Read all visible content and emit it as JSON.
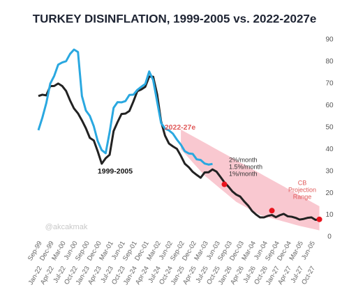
{
  "chart_data": {
    "type": "line",
    "title": "TURKEY DISINFLATION, 1999-2005 vs. 2022-2027e",
    "categories_top": [
      "Sep-99",
      null,
      null,
      "Dec-99",
      null,
      null,
      "Mar-00",
      null,
      null,
      "Jun-00",
      null,
      null,
      "Sep-00",
      null,
      null,
      "Dec-00",
      null,
      null,
      "Mar-01",
      null,
      null,
      "Jun-01",
      null,
      null,
      "Sep-01",
      null,
      null,
      "Dec-01",
      null,
      null,
      "Mar-02",
      null,
      null,
      "Jun-02",
      null,
      null,
      "Sep-02",
      null,
      null,
      "Dec-02",
      null,
      null,
      "Mar-03",
      null,
      null,
      "Jun-03",
      null,
      null,
      "Sep-03",
      null,
      null,
      "Dec-03",
      null,
      null,
      "Mar-04",
      null,
      null,
      "Jun-04",
      null,
      null,
      "Sep-04",
      null,
      null,
      "Dec-04",
      null,
      null,
      "Mar-05",
      null,
      null,
      "Jun-05",
      null,
      null
    ],
    "categories": [
      "Jan-22",
      null,
      null,
      "Apr-22",
      null,
      null,
      "Jul-22",
      null,
      null,
      "Oct-22",
      null,
      null,
      "Jan-23",
      null,
      null,
      "Apr-23",
      null,
      null,
      "Jul-23",
      null,
      null,
      "Oct-23",
      null,
      null,
      "Jan-24",
      null,
      null,
      "Apr-24",
      null,
      null,
      "Jul-24",
      null,
      null,
      "Oct-24",
      null,
      null,
      "Jan-25",
      null,
      null,
      "Apr-25",
      null,
      null,
      "Jul-25",
      null,
      null,
      "Oct-25",
      null,
      null,
      "Jan-26",
      null,
      null,
      "Apr-26",
      null,
      null,
      "Jul-26",
      null,
      null,
      "Oct-26",
      null,
      null,
      "Jan-27",
      null,
      null,
      "Apr-27",
      null,
      null,
      "Jul-27",
      null,
      null,
      "Oct-27",
      null,
      null
    ],
    "series": [
      {
        "name": "2022-27e",
        "color": "#2aa8e0",
        "values": [
          48.7,
          54.4,
          61.1,
          70.0,
          73.5,
          78.6,
          79.6,
          80.2,
          83.5,
          85.5,
          84.4,
          64.3,
          57.7,
          55.2,
          50.5,
          43.7,
          39.6,
          38.2,
          47.8,
          58.9,
          61.5,
          61.4,
          62.0,
          64.8,
          64.9,
          67.1,
          68.5,
          69.8,
          75.5,
          71.6,
          61.8,
          52.0,
          49.4,
          48.6,
          47.1,
          44.4,
          42.1,
          39.1,
          38.1,
          37.9,
          35.4,
          35.1,
          33.5,
          33.0,
          33.3,
          null,
          null,
          null,
          null,
          null,
          null,
          null,
          null,
          null,
          null,
          null,
          null,
          null,
          null,
          null,
          null,
          null,
          null,
          null,
          null,
          null,
          null,
          null,
          null,
          null,
          null,
          null
        ]
      },
      {
        "name": "1999-2005",
        "color": "#222222",
        "values": [
          64.3,
          64.9,
          64.6,
          68.8,
          68.9,
          70.0,
          68.9,
          66.6,
          62.3,
          58.6,
          56.4,
          53.2,
          49.6,
          45.2,
          44.0,
          39.0,
          33.4,
          35.9,
          37.5,
          48.3,
          52.4,
          56.1,
          56.3,
          57.5,
          61.8,
          66.5,
          67.3,
          68.5,
          73.2,
          73.1,
          65.1,
          52.7,
          46.2,
          42.6,
          41.3,
          40.2,
          37.0,
          33.4,
          31.8,
          29.7,
          28.3,
          27.0,
          29.4,
          29.5,
          30.8,
          29.8,
          27.4,
          24.9,
          23.0,
          20.8,
          19.3,
          18.4,
          16.2,
          14.3,
          11.8,
          10.2,
          8.9,
          8.9,
          9.6,
          10.0,
          9.0,
          9.9,
          10.5,
          9.4,
          9.2,
          8.7,
          7.9,
          8.2,
          8.7,
          8.9,
          7.8,
          7.9
        ]
      }
    ],
    "band": {
      "color": "#f9c8d0",
      "upper": [
        null,
        null,
        null,
        null,
        null,
        null,
        null,
        null,
        null,
        null,
        null,
        null,
        null,
        null,
        null,
        null,
        null,
        null,
        null,
        null,
        null,
        null,
        null,
        null,
        null,
        null,
        null,
        null,
        null,
        null,
        null,
        null,
        null,
        null,
        null,
        null,
        49,
        48,
        47,
        46,
        45,
        44,
        43,
        42,
        41,
        40,
        39,
        38,
        37,
        36,
        35,
        34,
        33,
        32,
        31,
        30,
        29,
        28,
        27,
        26,
        25,
        24,
        23,
        22,
        21,
        20,
        19,
        18,
        17,
        16,
        15,
        14
      ],
      "lower": [
        null,
        null,
        null,
        null,
        null,
        null,
        null,
        null,
        null,
        null,
        null,
        null,
        null,
        null,
        null,
        null,
        null,
        null,
        null,
        null,
        null,
        null,
        null,
        null,
        null,
        null,
        null,
        null,
        null,
        null,
        null,
        null,
        null,
        null,
        null,
        null,
        40,
        38,
        36,
        34,
        32,
        30,
        28,
        26.5,
        25,
        23.5,
        22,
        20.5,
        19,
        17.5,
        16,
        15,
        14,
        13,
        12,
        11,
        10,
        9.5,
        9,
        8.5,
        8,
        7.5,
        7,
        6.5,
        6,
        5.5,
        5,
        4.6,
        4.2,
        3.8,
        3.4,
        3
      ]
    },
    "cb_points": {
      "color": "#e8141e",
      "values": [
        null,
        null,
        null,
        null,
        null,
        null,
        null,
        null,
        null,
        null,
        null,
        null,
        null,
        null,
        null,
        null,
        null,
        null,
        null,
        null,
        null,
        null,
        null,
        null,
        null,
        null,
        null,
        null,
        null,
        null,
        null,
        null,
        null,
        null,
        null,
        null,
        null,
        null,
        null,
        null,
        null,
        null,
        null,
        null,
        null,
        null,
        null,
        24,
        null,
        null,
        null,
        null,
        null,
        null,
        null,
        null,
        null,
        null,
        null,
        12,
        null,
        null,
        null,
        null,
        null,
        null,
        null,
        null,
        null,
        null,
        null,
        8
      ]
    },
    "cb_label": [
      "CB",
      "Projection",
      "Range"
    ],
    "annotations": [
      "2%/month",
      "1.5%/month",
      "1%/month"
    ],
    "watermark": "@akcakmak",
    "ylim": [
      0,
      90
    ],
    "yticks": [
      0,
      10,
      20,
      30,
      40,
      50,
      60,
      70,
      80,
      90
    ],
    "grid": false
  }
}
